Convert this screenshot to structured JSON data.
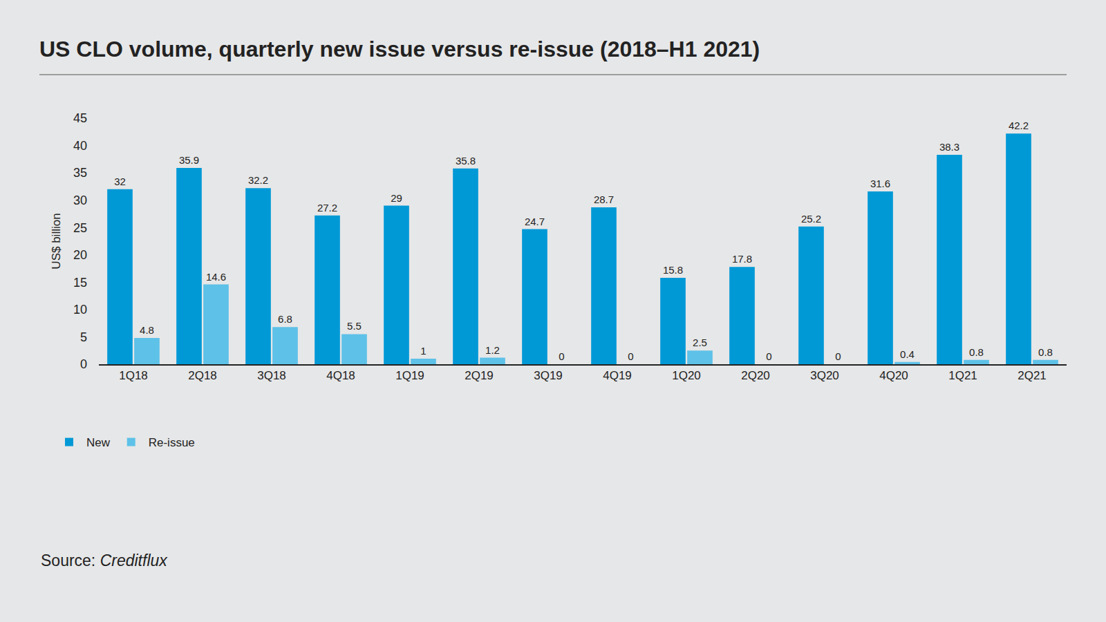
{
  "chart_data": {
    "type": "bar",
    "title": "US CLO volume, quarterly new issue versus re-issue (2018–H1 2021)",
    "y_label": "US$ billion",
    "categories": [
      "1Q18",
      "2Q18",
      "3Q18",
      "4Q18",
      "1Q19",
      "2Q19",
      "3Q19",
      "4Q19",
      "1Q20",
      "2Q20",
      "3Q20",
      "4Q20",
      "1Q21",
      "2Q21"
    ],
    "series": [
      {
        "name": "New",
        "color": "#0099d6",
        "values": [
          32,
          35.9,
          32.2,
          27.2,
          29,
          35.8,
          24.7,
          28.7,
          15.8,
          17.8,
          25.2,
          31.6,
          38.3,
          42.2
        ]
      },
      {
        "name": "Re-issue",
        "color": "#5ec1e8",
        "values": [
          4.8,
          14.6,
          6.8,
          5.5,
          1,
          1.2,
          0,
          0,
          2.5,
          0,
          0,
          0.4,
          0.8,
          0.8
        ]
      }
    ],
    "ylim": [
      0,
      45
    ],
    "yticks": [
      0,
      5,
      10,
      15,
      20,
      25,
      30,
      35,
      40,
      45
    ],
    "grid": false,
    "data_labels": true,
    "legend": "bottom left",
    "source": "Source: Creditflux"
  }
}
